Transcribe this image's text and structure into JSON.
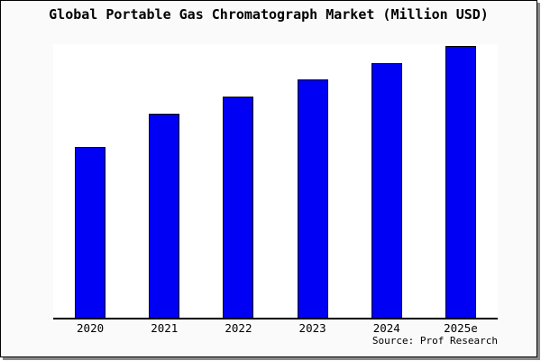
{
  "title": "Global Portable Gas Chromatograph Market (Million USD)",
  "source": "Source: Prof Research",
  "colors": {
    "bar": "#0000f5",
    "bar_border": "#000000",
    "background": "#fafafa",
    "plot_background": "#ffffff",
    "axis": "#000000",
    "frame_border": "#000000",
    "frame_shadow": "#8a8a8a",
    "text": "#000000"
  },
  "chart_data": {
    "type": "bar",
    "title": "Global Portable Gas Chromatograph Market (Million USD)",
    "categories": [
      "2020",
      "2021",
      "2022",
      "2023",
      "2024",
      "2025e"
    ],
    "values": [
      62.7,
      75.2,
      81.5,
      87.7,
      93.7,
      100
    ],
    "xlabel": "",
    "ylabel": "",
    "ylim": [
      0,
      100
    ],
    "grid": false,
    "legend": "none",
    "annotations": "Source: Prof Research",
    "note": "No y-axis, gridlines or data labels are shown in the image; values are relative bar heights indexed to 2025e = 100"
  }
}
